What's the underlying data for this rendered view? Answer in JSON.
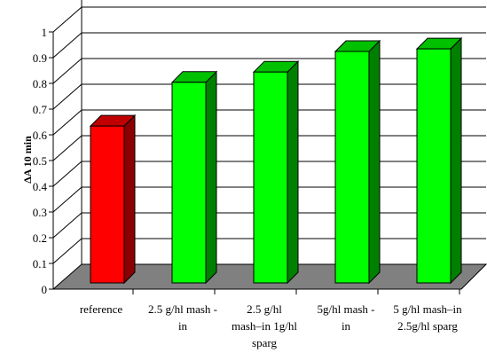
{
  "chart_data": {
    "type": "bar",
    "style": "3d",
    "title": "",
    "xlabel": "",
    "ylabel": "ΔA 10 min",
    "ylim": [
      0,
      1
    ],
    "yticks": [
      "0",
      "0.1",
      "0.2",
      "0.3",
      "0.4",
      "0.5",
      "0.6",
      "0.7",
      "0.8",
      "0.9",
      "1"
    ],
    "grid": true,
    "legend": "none",
    "categories": [
      [
        "reference"
      ],
      [
        "2.5 g/hl mash -",
        "in"
      ],
      [
        "2.5 g/hl",
        "mash–in 1g/hl",
        "sparg"
      ],
      [
        "5g/hl     mash -",
        "in"
      ],
      [
        "5 g/hl mash–in",
        "2.5g/hl sparg"
      ]
    ],
    "values": [
      0.61,
      0.78,
      0.82,
      0.9,
      0.91
    ],
    "colors": {
      "reference_front": "#ff0000",
      "reference_side": "#8b0000",
      "reference_top": "#c00000",
      "treatment_front": "#00ff00",
      "treatment_side": "#008000",
      "treatment_top": "#00c000",
      "floor": "#808080"
    }
  }
}
